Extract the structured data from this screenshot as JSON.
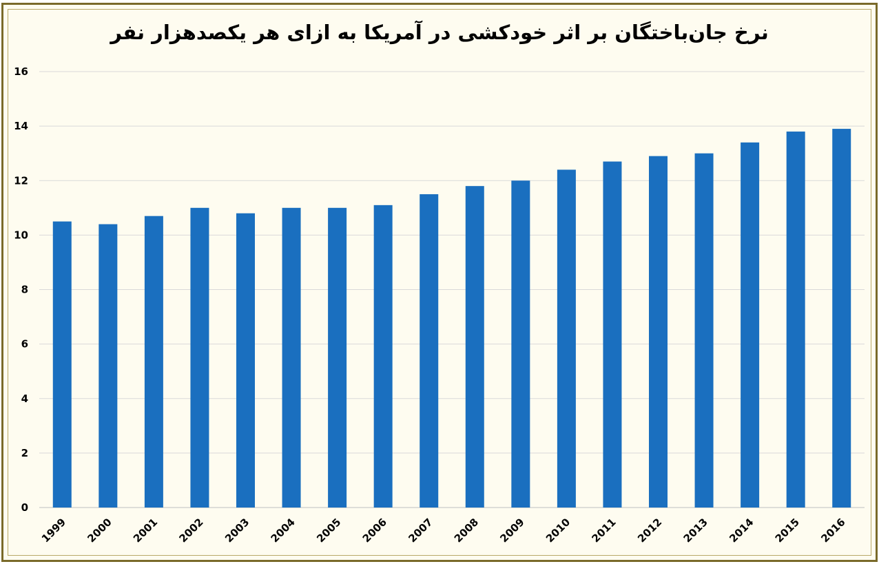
{
  "chart_data": {
    "type": "bar",
    "title": "نرخ جان‌باختگان بر اثر خودکشی در آمریکا به ازای هر یکصدهزار نفر",
    "xlabel": "",
    "ylabel": "",
    "categories": [
      "1999",
      "2000",
      "2001",
      "2002",
      "2003",
      "2004",
      "2005",
      "2006",
      "2007",
      "2008",
      "2009",
      "2010",
      "2011",
      "2012",
      "2013",
      "2014",
      "2015",
      "2016"
    ],
    "values": [
      10.5,
      10.4,
      10.7,
      11.0,
      10.8,
      11.0,
      11.0,
      11.1,
      11.5,
      11.8,
      12.0,
      12.4,
      12.7,
      12.9,
      13.0,
      13.4,
      13.8,
      13.9
    ],
    "ylim": [
      0,
      16
    ],
    "yticks": [
      "0",
      "2",
      "4",
      "6",
      "8",
      "10",
      "12",
      "14",
      "16"
    ],
    "grid": true,
    "legend": "none",
    "bar_color": "#1a6fbf",
    "grid_color": "#d9d9d9",
    "axis_color": "#bfbfbf"
  },
  "colors": {
    "background": "#fefcf0",
    "frame": "#7a6a2a"
  }
}
